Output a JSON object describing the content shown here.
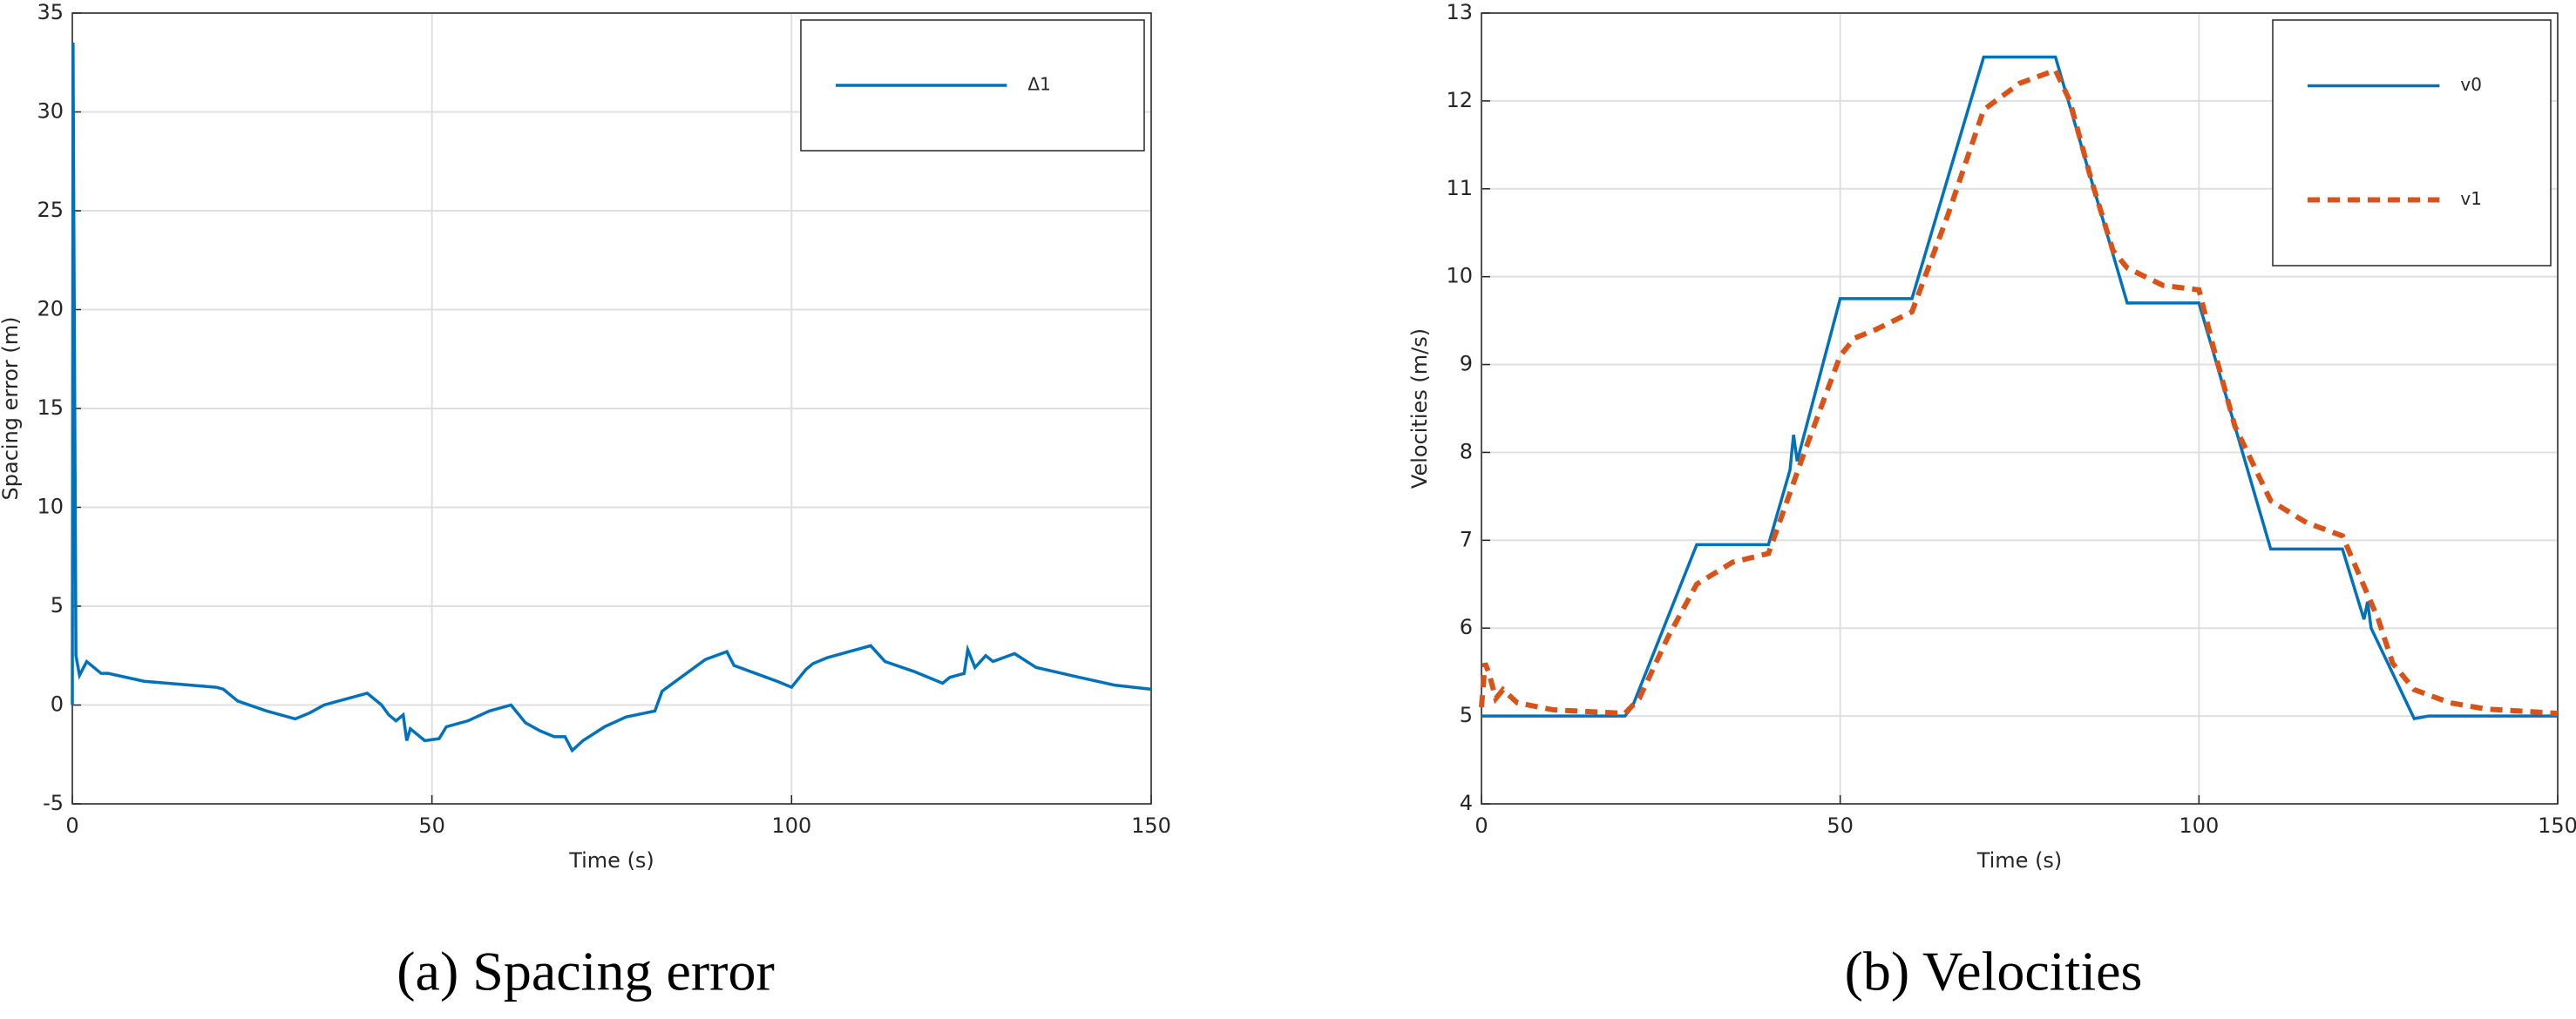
{
  "chart_data": [
    {
      "type": "line",
      "caption": "(a) Spacing error",
      "xlabel": "Time (s)",
      "ylabel": "Spacing error (m)",
      "xlim": [
        0,
        150
      ],
      "ylim": [
        -5,
        35
      ],
      "xticks": [
        0,
        50,
        100,
        150
      ],
      "yticks": [
        -5,
        0,
        5,
        10,
        15,
        20,
        25,
        30,
        35
      ],
      "grid": true,
      "legend": "upper right",
      "series": [
        {
          "name": "Δ1",
          "color": "#0072bd",
          "dash": false,
          "x": [
            0,
            0.1,
            0.2,
            0.3,
            0.5,
            1,
            2,
            4,
            5,
            10,
            20,
            21,
            23,
            27,
            31,
            33,
            35,
            40,
            41,
            43,
            44,
            45,
            46,
            46.5,
            47,
            49,
            51,
            52,
            55,
            58,
            61,
            63,
            65,
            67,
            68.5,
            69.5,
            71,
            74,
            77,
            81,
            82,
            85,
            88,
            91,
            92,
            95,
            98,
            100,
            102,
            103,
            105,
            108,
            111,
            113,
            117,
            121,
            122,
            124,
            124.5,
            125.5,
            127,
            128,
            131,
            134,
            140,
            145,
            150
          ],
          "values": [
            0,
            33.5,
            25,
            18,
            2.5,
            1.5,
            2.2,
            1.6,
            1.6,
            1.2,
            0.9,
            0.8,
            0.2,
            -0.3,
            -0.7,
            -0.4,
            0,
            0.5,
            0.6,
            0,
            -0.5,
            -0.8,
            -0.5,
            -1.8,
            -1.2,
            -1.8,
            -1.7,
            -1.1,
            -0.8,
            -0.3,
            0,
            -0.9,
            -1.3,
            -1.6,
            -1.6,
            -2.3,
            -1.8,
            -1.1,
            -0.6,
            -0.3,
            0.7,
            1.5,
            2.3,
            2.7,
            2.0,
            1.6,
            1.2,
            0.9,
            1.8,
            2.1,
            2.4,
            2.7,
            3.0,
            2.2,
            1.7,
            1.1,
            1.4,
            1.6,
            2.8,
            1.9,
            2.5,
            2.2,
            2.6,
            1.9,
            1.4,
            1.0,
            0.8
          ]
        }
      ]
    },
    {
      "type": "line",
      "caption": "(b) Velocities",
      "xlabel": "Time (s)",
      "ylabel": "Velocities (m/s)",
      "xlim": [
        0,
        150
      ],
      "ylim": [
        4,
        13
      ],
      "xticks": [
        0,
        50,
        100,
        150
      ],
      "yticks": [
        4,
        5,
        6,
        7,
        8,
        9,
        10,
        11,
        12,
        13
      ],
      "grid": true,
      "legend": "upper right",
      "series": [
        {
          "name": "v0",
          "color": "#0072bd",
          "dash": false,
          "x": [
            0,
            20,
            21,
            30,
            40,
            43,
            43.5,
            44,
            50,
            60,
            70,
            80,
            90,
            100,
            110,
            120,
            123,
            123.5,
            124,
            130,
            132,
            150
          ],
          "values": [
            5,
            5,
            5.1,
            6.95,
            6.95,
            7.8,
            8.2,
            7.9,
            9.75,
            9.75,
            12.5,
            12.5,
            9.7,
            9.7,
            6.9,
            6.9,
            6.1,
            6.3,
            6.0,
            4.97,
            5,
            5
          ]
        },
        {
          "name": "v1",
          "color": "#d95319",
          "dash": true,
          "x": [
            0,
            0.5,
            1,
            2,
            3,
            5,
            10,
            20,
            22,
            26,
            30,
            35,
            40,
            45,
            50,
            52,
            55,
            60,
            65,
            70,
            75,
            80,
            82,
            85,
            88,
            90,
            95,
            100,
            102,
            105,
            110,
            115,
            120,
            125,
            127,
            130,
            135,
            140,
            150
          ],
          "values": [
            5.1,
            5.6,
            5.5,
            5.2,
            5.3,
            5.15,
            5.07,
            5.03,
            5.2,
            5.9,
            6.5,
            6.75,
            6.85,
            8,
            9.1,
            9.3,
            9.4,
            9.6,
            10.7,
            11.9,
            12.2,
            12.35,
            12.0,
            11.1,
            10.3,
            10.1,
            9.9,
            9.85,
            9.2,
            8.3,
            7.45,
            7.2,
            7.05,
            6.1,
            5.6,
            5.3,
            5.15,
            5.08,
            5.03
          ]
        }
      ]
    }
  ]
}
